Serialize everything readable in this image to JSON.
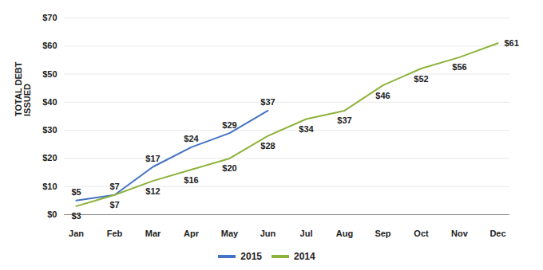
{
  "chart_data": {
    "type": "line",
    "ylabel": "TOTAL DEBT\nISSUED",
    "categories": [
      "Jan",
      "Feb",
      "Mar",
      "Apr",
      "May",
      "Jun",
      "Jul",
      "Aug",
      "Sep",
      "Oct",
      "Nov",
      "Dec"
    ],
    "series": [
      {
        "name": "2015",
        "color": "#4472C4",
        "values": [
          5,
          7,
          17,
          24,
          29,
          37,
          null,
          null,
          null,
          null,
          null,
          null
        ],
        "value_labels": [
          "$5",
          "$7",
          "$17",
          "$24",
          "$29",
          "$37",
          null,
          null,
          null,
          null,
          null,
          null
        ]
      },
      {
        "name": "2014",
        "color": "#8DB33A",
        "values": [
          3,
          7,
          12,
          16,
          20,
          28,
          34,
          37,
          46,
          52,
          56,
          61
        ],
        "value_labels": [
          "$3",
          "$7",
          "$12",
          "$16",
          "$20",
          "$28",
          "$34",
          "$37",
          "$46",
          "$52",
          "$56",
          "$61"
        ]
      }
    ],
    "ylim": [
      0,
      70
    ],
    "yticks": [
      {
        "value": 0,
        "label": "$0"
      },
      {
        "value": 10,
        "label": "$10"
      },
      {
        "value": 20,
        "label": "$20"
      },
      {
        "value": 30,
        "label": "$30"
      },
      {
        "value": 40,
        "label": "$40"
      },
      {
        "value": 50,
        "label": "$50"
      },
      {
        "value": 60,
        "label": "$60"
      },
      {
        "value": 70,
        "label": "$70"
      }
    ],
    "grid": true,
    "legend": "bottom",
    "data_labels": true
  }
}
